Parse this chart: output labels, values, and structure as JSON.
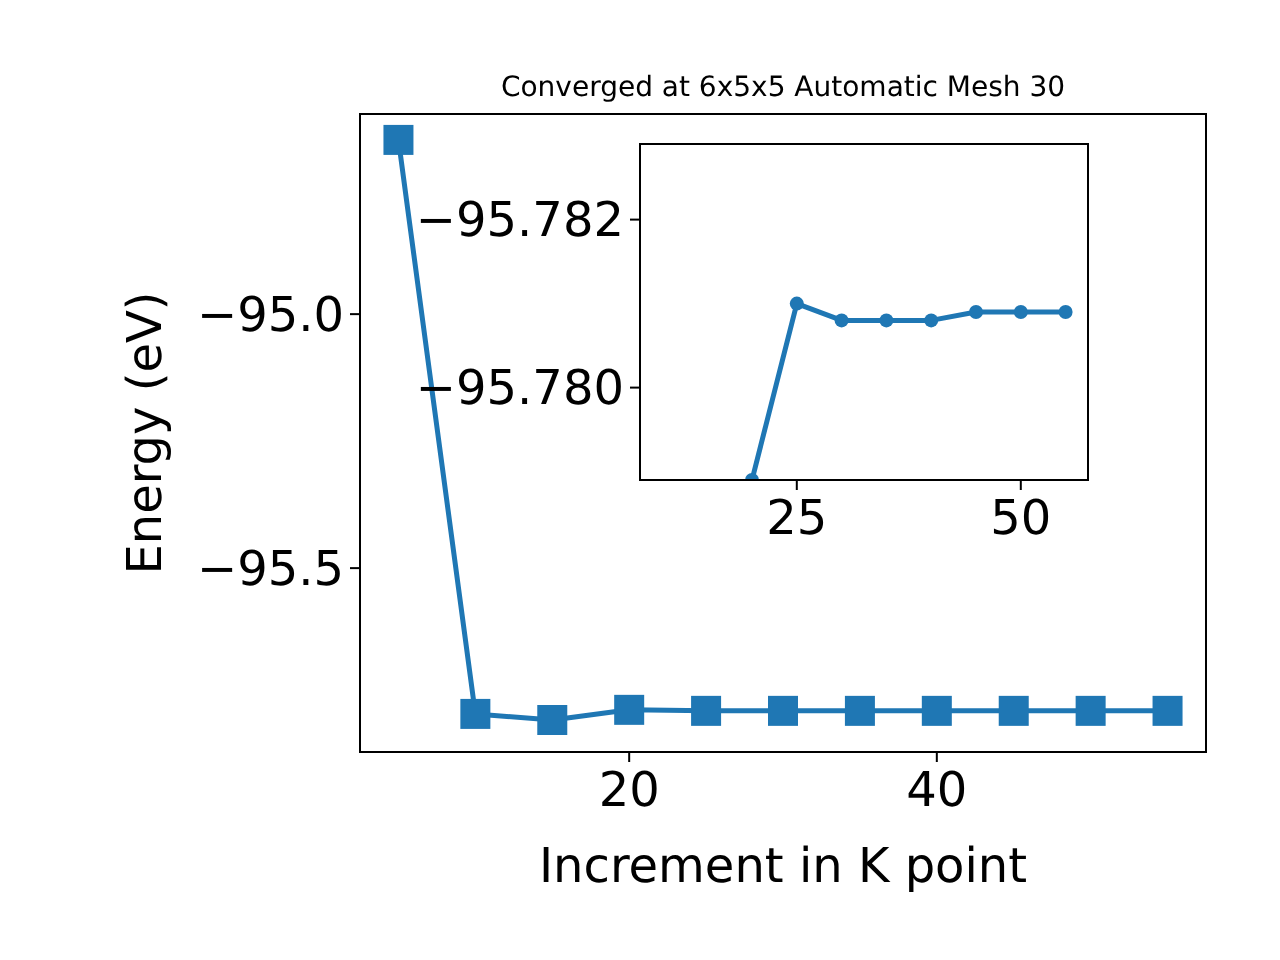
{
  "chart_data": [
    {
      "type": "line",
      "title": "Converged at 6x5x5 Automatic Mesh 30",
      "xlabel": "Increment in K point",
      "ylabel": "Energy (eV)",
      "x": [
        5,
        10,
        15,
        20,
        25,
        30,
        35,
        40,
        45,
        50,
        55
      ],
      "series": [
        {
          "color": "#1f77b4",
          "values": [
            -94.657,
            -95.787,
            -95.799,
            -95.779,
            -95.781,
            -95.781,
            -95.781,
            -95.781,
            -95.781,
            -95.781,
            -95.781
          ]
        }
      ],
      "xlim": [
        2.5,
        57.5
      ],
      "ylim": [
        -95.862,
        -94.606
      ],
      "xticks": [
        20,
        40
      ],
      "yticks": [
        {
          "value": -95.5,
          "label": "−95.5"
        },
        {
          "value": -95.0,
          "label": "−95.0"
        }
      ],
      "marker": "square",
      "line_style": "solid"
    },
    {
      "type": "line",
      "x": [
        20,
        25,
        30,
        35,
        40,
        45,
        50,
        55
      ],
      "series": [
        {
          "color": "#1f77b4",
          "values": [
            -95.7789,
            -95.781,
            -95.7808,
            -95.7808,
            -95.7808,
            -95.7809,
            -95.7809,
            -95.7809
          ]
        }
      ],
      "xlim": [
        7.5,
        57.5
      ],
      "ylim": [
        -95.7789,
        -95.7829
      ],
      "xticks": [
        25,
        50
      ],
      "yticks": [
        {
          "value": -95.782,
          "label": "−95.782"
        },
        {
          "value": -95.78,
          "label": "−95.780"
        }
      ],
      "marker": "circle",
      "line_style": "solid"
    }
  ]
}
